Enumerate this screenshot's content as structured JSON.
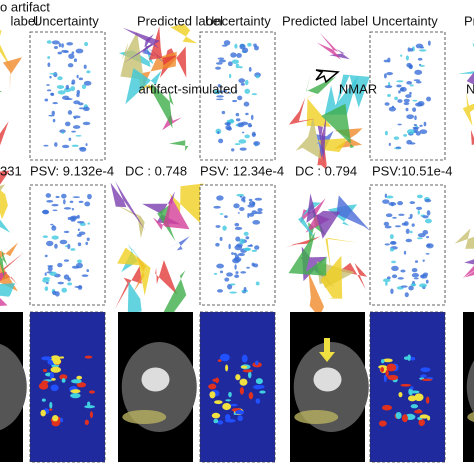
{
  "columns": [
    {
      "title": "o artifact",
      "labels": [
        "label",
        "Uncertainty"
      ],
      "metrics": [
        "331",
        "PSV: 9.132e-4"
      ]
    },
    {
      "title": "artifact-simulated",
      "labels": [
        "Predicted label",
        "Uncertainty"
      ],
      "metrics": [
        "DC : 0.748",
        "PSV: 12.34e-4"
      ]
    },
    {
      "title": "NMAR",
      "labels": [
        "Predicted label",
        "Uncertainty"
      ],
      "metrics": [
        "DC : 0.794",
        "PSV:10.51e-4"
      ]
    },
    {
      "title": "N",
      "labels": [
        "Predi"
      ]
    }
  ]
}
